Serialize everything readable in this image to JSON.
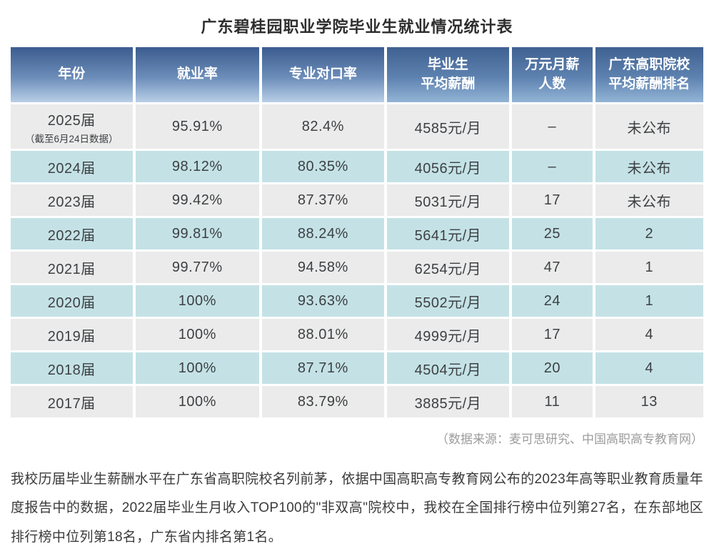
{
  "title": "广东碧桂园职业学院毕业生就业情况统计表",
  "table": {
    "headers": [
      "年份",
      "就业率",
      "专业对口率",
      "毕业生\n平均薪酬",
      "万元月薪\n人数",
      "广东高职院校\n平均薪酬排名"
    ],
    "rows": [
      {
        "year": "2025届",
        "note": "（截至6月24日数据）",
        "employment": "95.91%",
        "match": "82.4%",
        "salary": "4585元/月",
        "tenk": "–",
        "rank": "未公布"
      },
      {
        "year": "2024届",
        "employment": "98.12%",
        "match": "80.35%",
        "salary": "4056元/月",
        "tenk": "–",
        "rank": "未公布"
      },
      {
        "year": "2023届",
        "employment": "99.42%",
        "match": "87.37%",
        "salary": "5031元/月",
        "tenk": "17",
        "rank": "未公布"
      },
      {
        "year": "2022届",
        "employment": "99.81%",
        "match": "88.24%",
        "salary": "5641元/月",
        "tenk": "25",
        "rank": "2"
      },
      {
        "year": "2021届",
        "employment": "99.77%",
        "match": "94.58%",
        "salary": "6254元/月",
        "tenk": "47",
        "rank": "1"
      },
      {
        "year": "2020届",
        "employment": "100%",
        "match": "93.63%",
        "salary": "5502元/月",
        "tenk": "24",
        "rank": "1"
      },
      {
        "year": "2019届",
        "employment": "100%",
        "match": "88.01%",
        "salary": "4999元/月",
        "tenk": "17",
        "rank": "4"
      },
      {
        "year": "2018届",
        "employment": "100%",
        "match": "87.71%",
        "salary": "4504元/月",
        "tenk": "20",
        "rank": "4"
      },
      {
        "year": "2017届",
        "employment": "100%",
        "match": "83.79%",
        "salary": "3885元/月",
        "tenk": "11",
        "rank": "13"
      }
    ]
  },
  "source_note": "（数据来源：麦可思研究、中国高职高专教育网）",
  "summary": "我校历届毕业生薪酬水平在广东省高职院校名列前茅，依据中国高职高专教育网公布的2023年高等职业教育质量年度报告中的数据，2022届毕业生月收入TOP100的\"非双高\"院校中，我校在全国排行榜中位列第27名，在东部地区排行榜中位列第18名，广东省内排名第1名。",
  "colors": {
    "header_gradient_top": "#3b5c8e",
    "header_gradient_bottom": "#b9cfe7",
    "row_gray": "#ebebeb",
    "row_teal": "#c4e2e6",
    "body_text": "#3d4043",
    "source_text": "#9c9c9c"
  }
}
